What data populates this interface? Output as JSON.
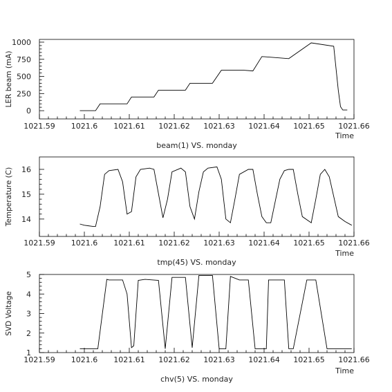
{
  "chart_data": [
    {
      "type": "line",
      "ylabel": "LER beam (mA)",
      "xlabel": "Time",
      "caption": "beam(1) VS. monday",
      "xlim": [
        1021.59,
        1021.66
      ],
      "ylim": [
        -120,
        1040
      ],
      "xticks": [
        "1021.59",
        "1021.6",
        "1021.61",
        "1021.62",
        "1021.63",
        "1021.64",
        "1021.65",
        "1021.66"
      ],
      "yticks": [
        "0",
        "250",
        "500",
        "750",
        "1000"
      ],
      "series": [
        {
          "x": [
            1021.599,
            1021.6025,
            1021.6035,
            1021.6095,
            1021.6105,
            1021.6155,
            1021.6165,
            1021.6225,
            1021.6235,
            1021.6285,
            1021.6305,
            1021.6355,
            1021.6375,
            1021.6395,
            1021.6455,
            1021.6505,
            1021.6555,
            1021.6565,
            1021.657,
            1021.6575,
            1021.6585
          ],
          "y": [
            0,
            0,
            100,
            100,
            200,
            200,
            300,
            300,
            400,
            400,
            590,
            590,
            580,
            790,
            760,
            990,
            940,
            300,
            60,
            10,
            10
          ]
        }
      ]
    },
    {
      "type": "line",
      "ylabel": "Temperature (C)",
      "xlabel": "Time",
      "caption": "tmp(45) VS. monday",
      "xlim": [
        1021.59,
        1021.66
      ],
      "ylim": [
        13.3,
        16.5
      ],
      "xticks": [
        "1021.59",
        "1021.6",
        "1021.61",
        "1021.62",
        "1021.63",
        "1021.64",
        "1021.65",
        "1021.66"
      ],
      "yticks": [
        "14",
        "15",
        "16"
      ],
      "series": [
        {
          "x": [
            1021.599,
            1021.6,
            1021.602,
            1021.6025,
            1021.6035,
            1021.6045,
            1021.6055,
            1021.6075,
            1021.6085,
            1021.6095,
            1021.6105,
            1021.6115,
            1021.6125,
            1021.6145,
            1021.6155,
            1021.6175,
            1021.6185,
            1021.6195,
            1021.6215,
            1021.6225,
            1021.6235,
            1021.6245,
            1021.6255,
            1021.6265,
            1021.6275,
            1021.6295,
            1021.6305,
            1021.6315,
            1021.6325,
            1021.6335,
            1021.6345,
            1021.6365,
            1021.6375,
            1021.6385,
            1021.6395,
            1021.6405,
            1021.6415,
            1021.6435,
            1021.6445,
            1021.6455,
            1021.6465,
            1021.6475,
            1021.6485,
            1021.6505,
            1021.6515,
            1021.6525,
            1021.6535,
            1021.6545,
            1021.6565,
            1021.658,
            1021.6595
          ],
          "y": [
            13.8,
            13.75,
            13.7,
            13.7,
            14.5,
            15.8,
            15.95,
            16.0,
            15.5,
            14.2,
            14.3,
            15.7,
            16.0,
            16.05,
            16.0,
            14.05,
            14.8,
            15.9,
            16.05,
            15.9,
            14.5,
            14.0,
            15.1,
            15.9,
            16.05,
            16.1,
            15.6,
            14.0,
            13.85,
            14.8,
            15.8,
            16.0,
            16.0,
            15.0,
            14.1,
            13.85,
            13.85,
            15.6,
            15.95,
            16.0,
            16.0,
            15.0,
            14.1,
            13.85,
            14.8,
            15.8,
            16.0,
            15.7,
            14.1,
            13.9,
            13.75
          ]
        }
      ]
    },
    {
      "type": "line",
      "ylabel": "SVD Voltage",
      "xlabel": "Time",
      "caption": "chv(5) VS. monday",
      "xlim": [
        1021.59,
        1021.66
      ],
      "ylim": [
        1,
        5
      ],
      "xticks": [
        "1021.59",
        "1021.6",
        "1021.61",
        "1021.62",
        "1021.63",
        "1021.64",
        "1021.65",
        "1021.66"
      ],
      "yticks": [
        "1",
        "2",
        "3",
        "4",
        "5"
      ],
      "series": [
        {
          "x": [
            1021.599,
            1021.603,
            1021.605,
            1021.6055,
            1021.6085,
            1021.6095,
            1021.6105,
            1021.611,
            1021.612,
            1021.6135,
            1021.6165,
            1021.618,
            1021.6195,
            1021.6225,
            1021.624,
            1021.6255,
            1021.6285,
            1021.63,
            1021.6315,
            1021.6325,
            1021.6345,
            1021.6365,
            1021.638,
            1021.6405,
            1021.641,
            1021.6415,
            1021.6445,
            1021.6455,
            1021.6465,
            1021.6495,
            1021.6505,
            1021.6515,
            1021.654,
            1021.6545,
            1021.6555,
            1021.6595
          ],
          "y": [
            1.2,
            1.2,
            4.75,
            4.72,
            4.72,
            4.0,
            1.25,
            1.35,
            4.7,
            4.75,
            4.7,
            1.2,
            4.85,
            4.85,
            1.25,
            4.95,
            4.95,
            1.2,
            1.2,
            4.9,
            4.72,
            4.72,
            1.2,
            1.2,
            4.72,
            4.72,
            4.72,
            1.2,
            1.2,
            4.72,
            4.72,
            4.72,
            1.2,
            1.2,
            1.2,
            1.2
          ]
        }
      ]
    }
  ]
}
